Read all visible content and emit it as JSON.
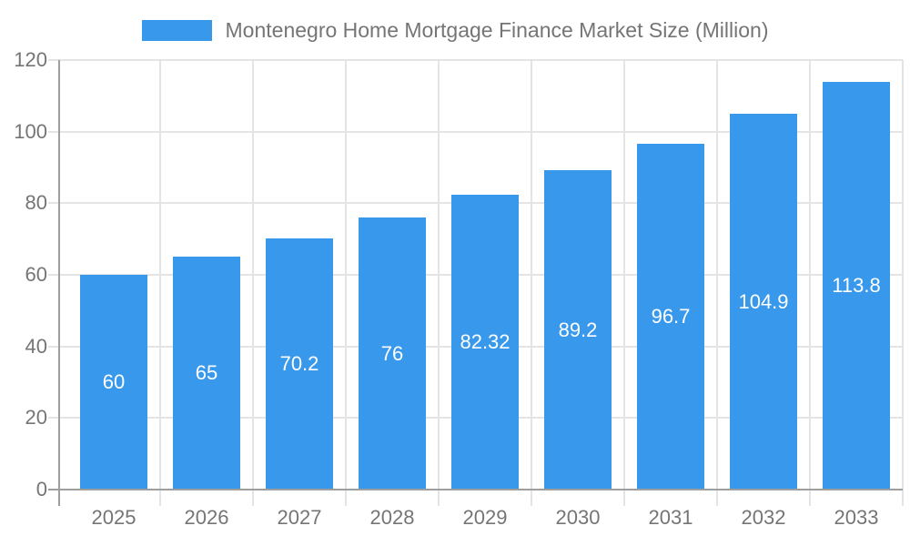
{
  "chart_data": {
    "type": "bar",
    "title": "Montenegro Home Mortgage Finance Market Size (Million)",
    "legend_position": "top",
    "categories": [
      "2025",
      "2026",
      "2027",
      "2028",
      "2029",
      "2030",
      "2031",
      "2032",
      "2033"
    ],
    "values": [
      60,
      65,
      70.2,
      76,
      82.32,
      89.2,
      96.7,
      104.9,
      113.8
    ],
    "value_labels": [
      "60",
      "65",
      "70.2",
      "76",
      "82.32",
      "89.2",
      "96.7",
      "104.9",
      "113.8"
    ],
    "xlabel": "",
    "ylabel": "",
    "ylim": [
      0,
      120
    ],
    "yticks": [
      0,
      20,
      40,
      60,
      80,
      100,
      120
    ],
    "grid": true,
    "colors": {
      "bar": "#3899EC",
      "axis": "#9E9E9E",
      "gridline": "#E4E4E4",
      "tick_text": "#757575",
      "legend_text": "#757575",
      "value_text": "#FFFFFF",
      "background": "#FFFFFF"
    }
  }
}
